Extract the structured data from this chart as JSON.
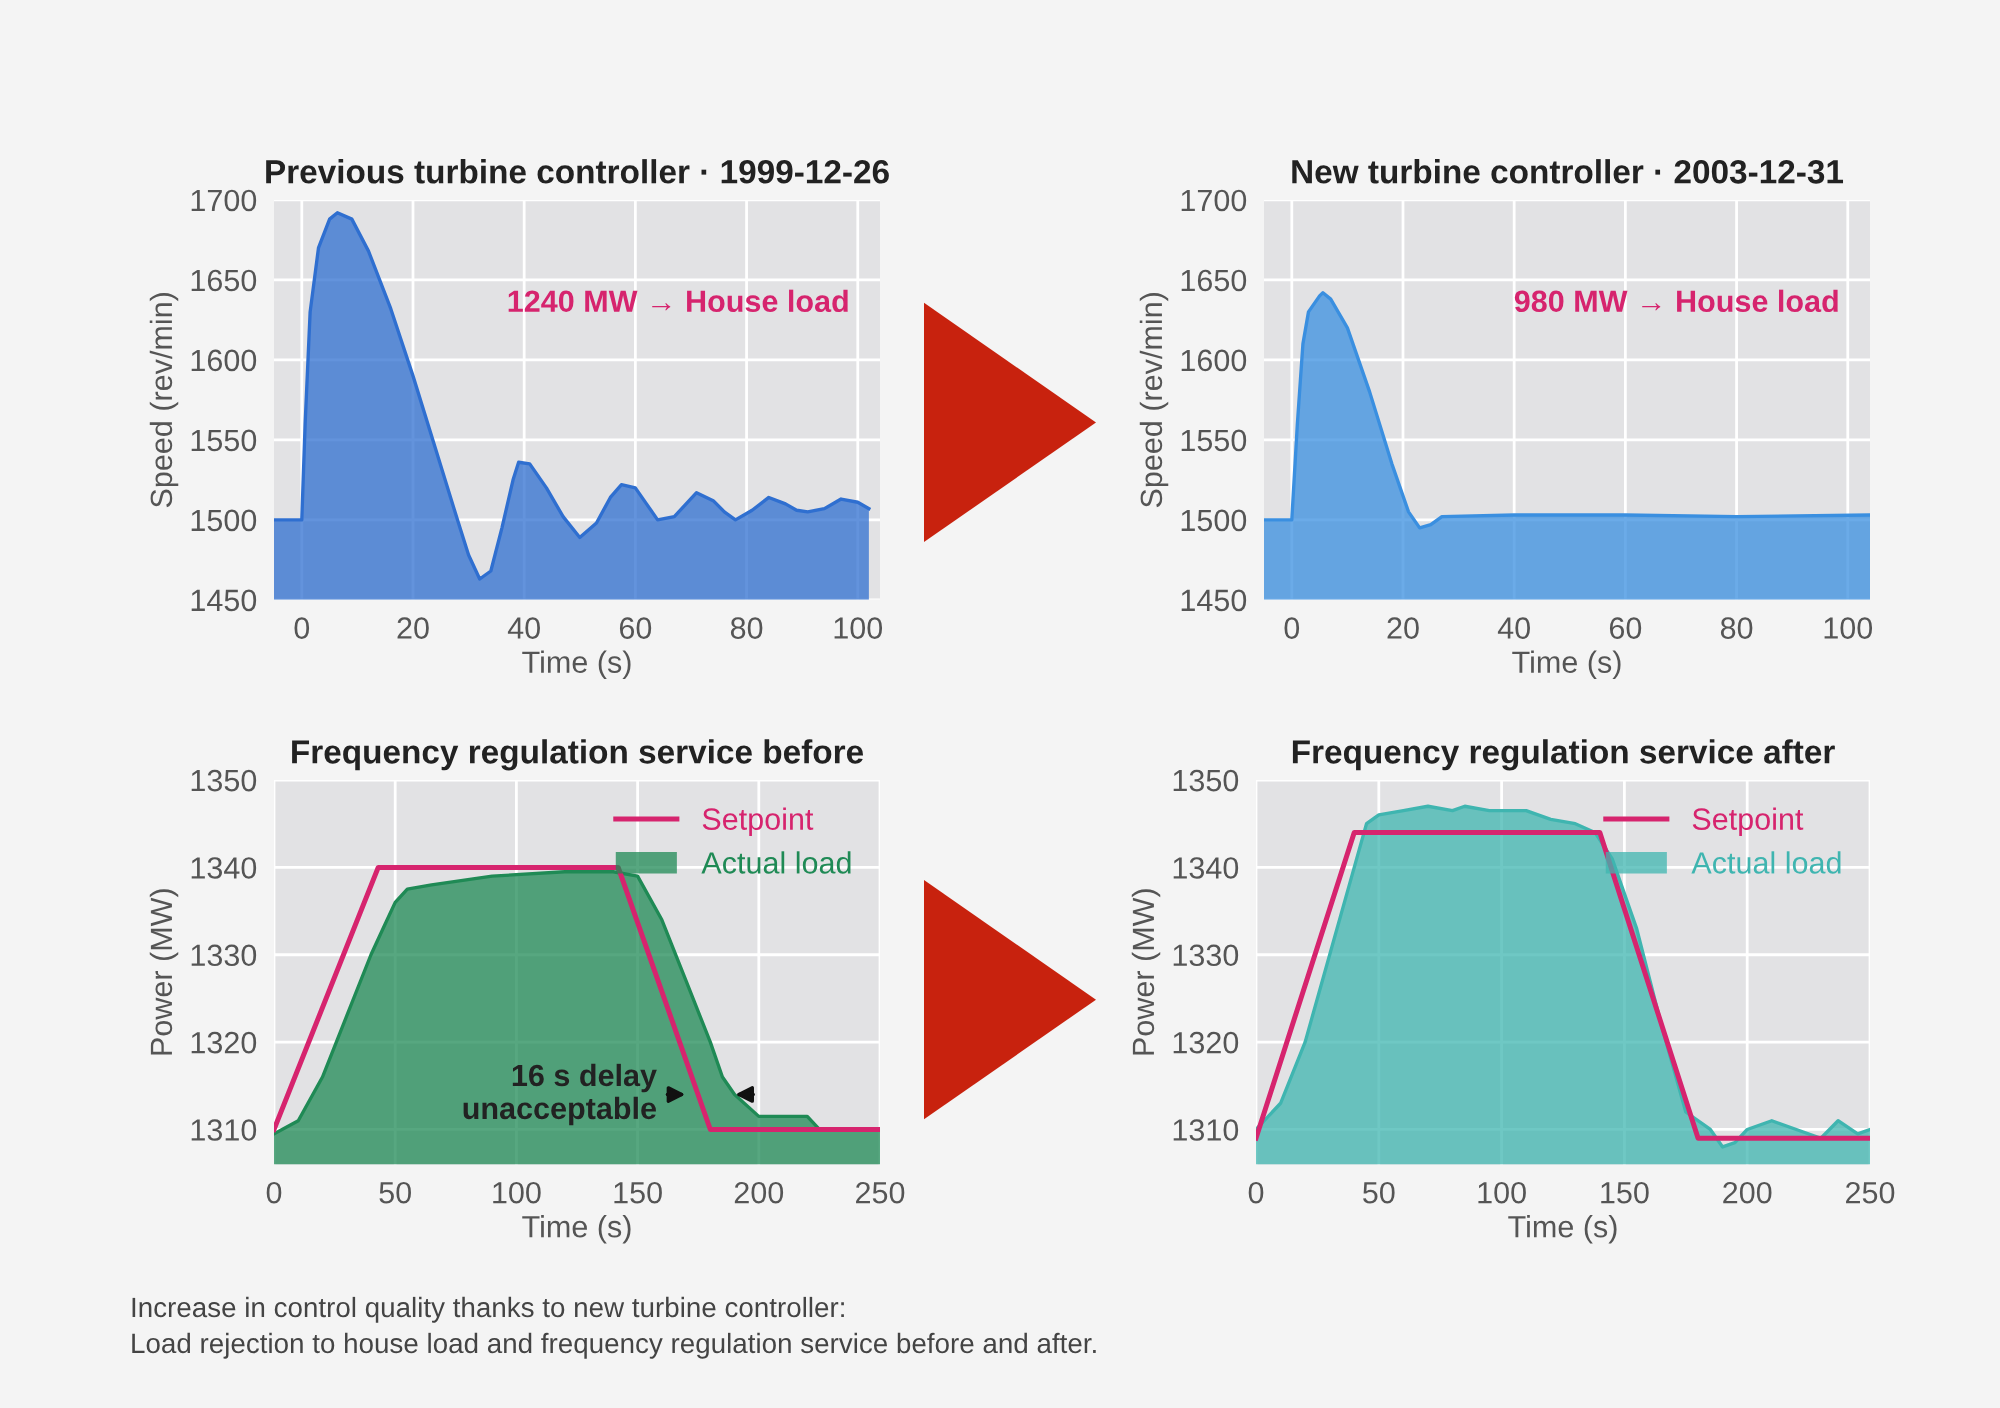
{
  "chart_data": [
    {
      "type": "area",
      "title": "Previous turbine controller · 1999-12-26",
      "xlabel": "Time (s)",
      "ylabel": "Speed (rev/min)",
      "xlim": [
        -5,
        104
      ],
      "xticks": [
        0,
        20,
        40,
        60,
        80,
        100
      ],
      "ylim": [
        1450,
        1700
      ],
      "yticks": [
        1450,
        1500,
        1550,
        1600,
        1650,
        1700
      ],
      "grid": true,
      "annotations": [
        "1240 MW → House load"
      ],
      "series": [
        {
          "color": "#2f6fd0",
          "x": [
            -5,
            0,
            0.6,
            1.5,
            3,
            5,
            6.4,
            9,
            12,
            16,
            20,
            24,
            28,
            30,
            32,
            34,
            36,
            38,
            39,
            41,
            44,
            47,
            50,
            53,
            55.5,
            57.5,
            60,
            62,
            64,
            67,
            71,
            74,
            76,
            78,
            81,
            84,
            87,
            89,
            91,
            94,
            97,
            100,
            102
          ],
          "values": [
            1500,
            1500,
            1560,
            1630,
            1670,
            1688,
            1692,
            1688,
            1668,
            1632,
            1590,
            1545,
            1500,
            1478,
            1463,
            1468,
            1495,
            1525,
            1536,
            1535,
            1520,
            1502,
            1489,
            1498,
            1514,
            1522,
            1520,
            1510,
            1500,
            1502,
            1517,
            1512,
            1505,
            1500,
            1506,
            1514,
            1510,
            1506,
            1505,
            1507,
            1513,
            1511,
            1507
          ]
        }
      ]
    },
    {
      "type": "area",
      "title": "New turbine controller · 2003-12-31",
      "xlabel": "Time (s)",
      "ylabel": "Speed (rev/min)",
      "xlim": [
        -5,
        104
      ],
      "xticks": [
        0,
        20,
        40,
        60,
        80,
        100
      ],
      "ylim": [
        1450,
        1700
      ],
      "yticks": [
        1450,
        1500,
        1550,
        1600,
        1650,
        1700
      ],
      "grid": true,
      "annotations": [
        "980 MW → House load"
      ],
      "series": [
        {
          "color": "#3a8fe0",
          "x": [
            -5,
            0,
            1,
            2,
            3,
            5,
            5.6,
            7,
            10,
            14,
            18,
            21,
            23,
            25,
            27,
            40,
            60,
            80,
            104
          ],
          "values": [
            1500,
            1500,
            1560,
            1610,
            1630,
            1640,
            1642,
            1638,
            1620,
            1580,
            1535,
            1505,
            1495,
            1497,
            1502,
            1503,
            1503,
            1502,
            1503
          ]
        }
      ]
    },
    {
      "type": "line",
      "title": "Frequency regulation service before",
      "xlabel": "Time (s)",
      "ylabel": "Power (MW)",
      "xlim": [
        0,
        250
      ],
      "xticks": [
        0,
        50,
        100,
        150,
        200,
        250
      ],
      "ylim": [
        1306,
        1350
      ],
      "yticks": [
        1310,
        1320,
        1330,
        1340,
        1350
      ],
      "grid": true,
      "legend": "top right",
      "annotations": [
        {
          "text": "16 s delay\nunacceptable",
          "x": 180,
          "y": 1314
        }
      ],
      "series": [
        {
          "name": "Setpoint",
          "type": "line",
          "color": "#d6246e",
          "x": [
            0,
            43,
            142,
            180,
            250
          ],
          "values": [
            1310,
            1340,
            1340,
            1310,
            1310
          ]
        },
        {
          "name": "Actual load",
          "type": "area",
          "color": "#1f8a55",
          "x": [
            0,
            10,
            20,
            30,
            40,
            45,
            50,
            55,
            65,
            90,
            120,
            140,
            150,
            160,
            170,
            180,
            185,
            190,
            200,
            220,
            225,
            250
          ],
          "values": [
            1309.5,
            1311,
            1316,
            1323,
            1330,
            1333,
            1336,
            1337.5,
            1338,
            1339,
            1339.5,
            1339.5,
            1339,
            1334,
            1327,
            1320,
            1316,
            1314,
            1311.5,
            1311.5,
            1310,
            1310
          ]
        }
      ]
    },
    {
      "type": "line",
      "title": "Frequency regulation service after",
      "xlabel": "Time (s)",
      "ylabel": "Power (MW)",
      "xlim": [
        0,
        250
      ],
      "xticks": [
        0,
        50,
        100,
        150,
        200,
        250
      ],
      "ylim": [
        1306,
        1350
      ],
      "yticks": [
        1310,
        1320,
        1330,
        1340,
        1350
      ],
      "grid": true,
      "legend": "top right",
      "annotations": [
        "Increase in control quality thanks to new turbine controller:\nLoad rejection to house load and frequency regulation service before and after."
      ],
      "series": [
        {
          "name": "Setpoint",
          "type": "line",
          "color": "#d6246e",
          "x": [
            0,
            40,
            140,
            180,
            250
          ],
          "values": [
            1309,
            1344,
            1344,
            1309,
            1309
          ]
        },
        {
          "name": "Actual load",
          "type": "area",
          "color": "#3fb5b0",
          "x": [
            0,
            10,
            20,
            30,
            38,
            42,
            45,
            50,
            60,
            70,
            80,
            85,
            95,
            110,
            120,
            130,
            138,
            145,
            155,
            165,
            175,
            185,
            190,
            195,
            200,
            210,
            220,
            230,
            237,
            245,
            250
          ],
          "values": [
            1310,
            1313,
            1320,
            1330,
            1338,
            1342,
            1345,
            1346,
            1346.5,
            1347,
            1346.5,
            1347,
            1346.5,
            1346.5,
            1345.5,
            1345,
            1344,
            1341,
            1333,
            1322,
            1312,
            1310,
            1308,
            1308.5,
            1310,
            1311,
            1310,
            1309,
            1311,
            1309.5,
            1310
          ]
        }
      ]
    }
  ]
}
